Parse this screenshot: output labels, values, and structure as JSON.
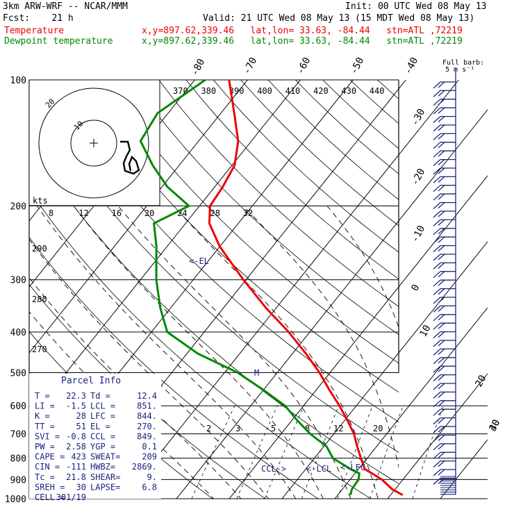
{
  "header": {
    "model": "3km ARW-WRF -- NCAR/MMM",
    "init": "Init: 00 UTC Wed 08 May 13",
    "fcst": "Fcst:    21 h",
    "valid": "Valid: 21 UTC Wed 08 May 13 (15 MDT Wed 08 May 13)",
    "lines": [
      {
        "label": "Temperature",
        "info": "x,y=897.62,339.46   lat,lon= 33.63, -84.44   stn=ATL ,72219",
        "color": "#ee0000"
      },
      {
        "label": "Dewpoint temperature",
        "info": "x,y=897.62,339.46   lat,lon= 33.63, -84.44   stn=ATL ,72219",
        "color": "#008800"
      }
    ]
  },
  "chart_data": {
    "type": "line",
    "title": "",
    "xlabel": "",
    "ylabel": "",
    "y_scale": "log-pressure",
    "ylim": [
      1000,
      100
    ],
    "pressure_ticks": [
      100,
      200,
      300,
      400,
      500,
      600,
      700,
      800,
      900,
      1000
    ],
    "skewed_temperature_labels": [
      "-80",
      "-70",
      "-60",
      "-50",
      "-40",
      "-30",
      "-20",
      "-10",
      "0",
      "10",
      "20",
      "30",
      "40"
    ],
    "theta_e_labels": [
      "370",
      "380",
      "390",
      "400",
      "410",
      "420",
      "430",
      "440"
    ],
    "mixing_ratio_labels": [
      "2",
      "3",
      "5",
      "8",
      "12",
      "20"
    ],
    "dry_adiabat_labels": [
      "290",
      "280",
      "270"
    ],
    "series": [
      {
        "name": "Temperature",
        "color": "#ee0000",
        "points": [
          [
            980,
            22.3
          ],
          [
            950,
            19.5
          ],
          [
            900,
            16.0
          ],
          [
            870,
            13.2
          ],
          [
            850,
            11.2
          ],
          [
            800,
            8.8
          ],
          [
            750,
            6.3
          ],
          [
            700,
            3.8
          ],
          [
            650,
            0.5
          ],
          [
            600,
            -3.2
          ],
          [
            550,
            -7.5
          ],
          [
            500,
            -12.0
          ],
          [
            450,
            -17.5
          ],
          [
            400,
            -24.0
          ],
          [
            350,
            -32.0
          ],
          [
            300,
            -40.5
          ],
          [
            270,
            -46.0
          ],
          [
            250,
            -50.0
          ],
          [
            220,
            -55.5
          ],
          [
            200,
            -58.0
          ],
          [
            180,
            -58.5
          ],
          [
            160,
            -59.5
          ],
          [
            140,
            -62.5
          ],
          [
            120,
            -67.5
          ],
          [
            100,
            -73.5
          ]
        ]
      },
      {
        "name": "Dewpoint temperature",
        "color": "#008800",
        "points": [
          [
            980,
            12.4
          ],
          [
            950,
            11.8
          ],
          [
            900,
            11.6
          ],
          [
            870,
            10.8
          ],
          [
            850,
            8.5
          ],
          [
            800,
            3.5
          ],
          [
            750,
            0.5
          ],
          [
            700,
            -4.5
          ],
          [
            650,
            -9.0
          ],
          [
            600,
            -13.5
          ],
          [
            550,
            -20.0
          ],
          [
            500,
            -27.5
          ],
          [
            450,
            -38.0
          ],
          [
            400,
            -47.0
          ],
          [
            350,
            -52.0
          ],
          [
            300,
            -57.0
          ],
          [
            250,
            -62.0
          ],
          [
            220,
            -66.0
          ],
          [
            200,
            -62.0
          ],
          [
            180,
            -69.0
          ],
          [
            160,
            -75.0
          ],
          [
            140,
            -81.0
          ],
          [
            120,
            -82.0
          ],
          [
            100,
            -78.0
          ]
        ]
      }
    ],
    "annotations": [
      "<-EL",
      "M",
      "CCL->",
      "<-LCL",
      "<-LFC"
    ],
    "hodograph": {
      "unit_label": "kts",
      "speed_labels": [
        "8",
        "12",
        "16",
        "20",
        "24",
        "28",
        "32"
      ],
      "ring_labels": [
        "10",
        "20"
      ]
    },
    "wind_legend": {
      "title": "Full barb:",
      "value": "5 m s⁻¹"
    }
  },
  "parcel_info": {
    "title": "Parcel Info",
    "rows": [
      [
        "T   =",
        "22.3",
        "Td  =",
        "12.4"
      ],
      [
        "LI  =",
        "-1.5",
        "LCL =",
        "851."
      ],
      [
        "K   =",
        "28",
        "LFC =",
        "844."
      ],
      [
        "TT  =",
        "51",
        "EL  =",
        "270."
      ],
      [
        "SVI =",
        "-0.8",
        "CCL =",
        "849."
      ],
      [
        "PW  =",
        "2.58",
        "YGP =",
        "0.1"
      ],
      [
        "CAPE =",
        "423",
        "SWEAT=",
        "209"
      ],
      [
        "CIN  =",
        "-111",
        "HWBZ=",
        "2869."
      ],
      [
        "Tc   =",
        "21.8",
        "SHEAR=",
        "9."
      ],
      [
        "SREH =",
        "30",
        "LAPSE=",
        "6.8"
      ],
      [
        "CELL =",
        "301/19",
        "",
        ""
      ]
    ]
  }
}
